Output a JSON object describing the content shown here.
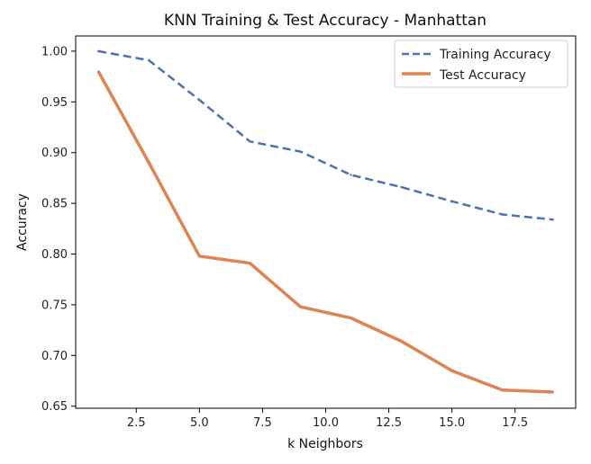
{
  "chart_data": {
    "type": "line",
    "title": "KNN Training & Test Accuracy - Manhattan",
    "xlabel": "k Neighbors",
    "ylabel": "Accuracy",
    "xlim": [
      0.1,
      19.9
    ],
    "ylim": [
      0.648,
      1.015
    ],
    "x_ticks": [
      2.5,
      5.0,
      7.5,
      10.0,
      12.5,
      15.0,
      17.5
    ],
    "x_tick_labels": [
      "2.5",
      "5.0",
      "7.5",
      "10.0",
      "12.5",
      "15.0",
      "17.5"
    ],
    "y_ticks": [
      0.65,
      0.7,
      0.75,
      0.8,
      0.85,
      0.9,
      0.95,
      1.0
    ],
    "y_tick_labels": [
      "0.65",
      "0.70",
      "0.75",
      "0.80",
      "0.85",
      "0.90",
      "0.95",
      "1.00"
    ],
    "grid": false,
    "legend_position": "top-right",
    "x": [
      1,
      3,
      5,
      7,
      9,
      11,
      13,
      15,
      17,
      19
    ],
    "series": [
      {
        "name": "Training Accuracy",
        "values": [
          1.0,
          0.991,
          0.952,
          0.911,
          0.901,
          0.878,
          0.866,
          0.852,
          0.839,
          0.834
        ],
        "color": "#4c72b0",
        "style": "dashed"
      },
      {
        "name": "Test Accuracy",
        "values": [
          0.98,
          0.89,
          0.798,
          0.791,
          0.748,
          0.737,
          0.714,
          0.685,
          0.666,
          0.664
        ],
        "color": "#dd8452",
        "style": "solid"
      }
    ]
  }
}
